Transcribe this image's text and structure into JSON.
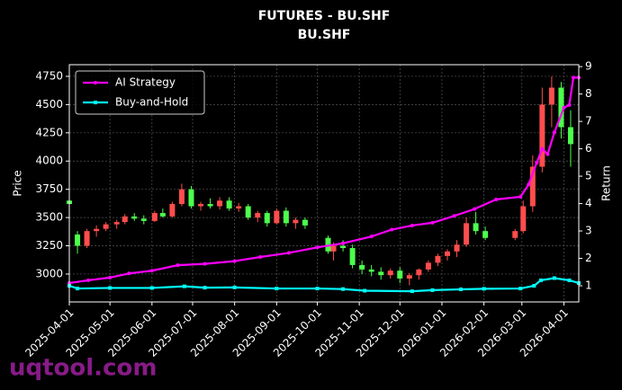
{
  "chart_data": {
    "type": "candlestick",
    "title": "FUTURES - BU.SHF",
    "subtitle": "BU.SHF",
    "ylabel": "Price",
    "y2label": "Return",
    "watermark": "uqtool.com",
    "grid": true,
    "legend": "upper left",
    "up_color": "#ff4d4d",
    "down_color": "#4dff4d",
    "xlim": [
      "2025-04-01",
      "2026-04-12"
    ],
    "xticks": [
      "2025-04-01",
      "2025-05-01",
      "2025-06-01",
      "2025-07-01",
      "2025-08-01",
      "2025-09-01",
      "2025-10-01",
      "2025-11-01",
      "2025-12-01",
      "2026-01-01",
      "2026-02-01",
      "2026-03-01",
      "2026-04-01"
    ],
    "ylim": [
      2753,
      4853
    ],
    "yticks": [
      3000,
      3250,
      3500,
      3750,
      4000,
      4250,
      4500,
      4750
    ],
    "y2lim": [
      0.41,
      9.07
    ],
    "y2ticks": [
      1,
      2,
      3,
      4,
      5,
      6,
      7,
      8,
      9
    ],
    "candles": {
      "x": [
        "2025-04-01",
        "2025-04-07",
        "2025-04-14",
        "2025-04-21",
        "2025-04-28",
        "2025-05-06",
        "2025-05-12",
        "2025-05-19",
        "2025-05-26",
        "2025-06-03",
        "2025-06-09",
        "2025-06-16",
        "2025-06-23",
        "2025-06-30",
        "2025-07-07",
        "2025-07-14",
        "2025-07-21",
        "2025-07-28",
        "2025-08-04",
        "2025-08-11",
        "2025-08-18",
        "2025-08-25",
        "2025-09-01",
        "2025-09-08",
        "2025-09-15",
        "2025-09-22",
        "2025-10-09",
        "2025-10-13",
        "2025-10-20",
        "2025-10-27",
        "2025-11-03",
        "2025-11-10",
        "2025-11-17",
        "2025-11-24",
        "2025-12-01",
        "2025-12-08",
        "2025-12-15",
        "2025-12-22",
        "2025-12-29",
        "2026-01-05",
        "2026-01-12",
        "2026-01-19",
        "2026-01-26",
        "2026-02-02",
        "2026-02-24",
        "2026-03-02",
        "2026-03-09",
        "2026-03-16",
        "2026-03-23",
        "2026-03-30",
        "2026-04-06"
      ],
      "open": [
        3650,
        3350,
        3250,
        3380,
        3400,
        3440,
        3460,
        3510,
        3490,
        3470,
        3540,
        3510,
        3620,
        3750,
        3600,
        3620,
        3600,
        3650,
        3580,
        3600,
        3500,
        3540,
        3450,
        3560,
        3450,
        3480,
        3320,
        3200,
        3250,
        3230,
        3080,
        3040,
        3020,
        2990,
        3030,
        2960,
        2990,
        3040,
        3100,
        3160,
        3200,
        3260,
        3450,
        3380,
        3320,
        3380,
        3600,
        3950,
        4500,
        4650,
        4300
      ],
      "high": [
        3700,
        3380,
        3400,
        3430,
        3460,
        3480,
        3530,
        3540,
        3520,
        3560,
        3580,
        3640,
        3800,
        3780,
        3640,
        3670,
        3680,
        3680,
        3630,
        3620,
        3560,
        3560,
        3580,
        3590,
        3500,
        3500,
        3340,
        3280,
        3300,
        3260,
        3120,
        3080,
        3060,
        3050,
        3060,
        3010,
        3050,
        3120,
        3180,
        3220,
        3300,
        3500,
        3550,
        3420,
        3400,
        3650,
        4050,
        4650,
        4750,
        4700,
        4450
      ],
      "low": [
        3600,
        3180,
        3230,
        3330,
        3380,
        3400,
        3440,
        3470,
        3440,
        3460,
        3500,
        3500,
        3600,
        3580,
        3560,
        3580,
        3570,
        3560,
        3550,
        3480,
        3460,
        3420,
        3440,
        3420,
        3400,
        3400,
        3180,
        3120,
        3200,
        3050,
        3000,
        2980,
        2950,
        2960,
        2920,
        2900,
        2950,
        3020,
        3070,
        3120,
        3150,
        3240,
        3350,
        3300,
        3300,
        3360,
        3550,
        3900,
        4300,
        4200,
        3950
      ],
      "close": [
        3620,
        3250,
        3380,
        3400,
        3440,
        3460,
        3510,
        3490,
        3470,
        3540,
        3510,
        3620,
        3750,
        3600,
        3620,
        3600,
        3650,
        3580,
        3600,
        3500,
        3540,
        3450,
        3560,
        3450,
        3480,
        3430,
        3200,
        3250,
        3230,
        3080,
        3040,
        3020,
        2990,
        3030,
        2960,
        2990,
        3040,
        3100,
        3160,
        3200,
        3260,
        3450,
        3380,
        3320,
        3380,
        3600,
        3950,
        4500,
        4650,
        4300,
        4150
      ]
    },
    "series": [
      {
        "name": "AI Strategy",
        "color": "#ff00ff",
        "axis": "y2",
        "marker": "circle",
        "x": [
          "2025-04-01",
          "2025-04-15",
          "2025-05-01",
          "2025-05-15",
          "2025-06-01",
          "2025-06-20",
          "2025-07-10",
          "2025-08-01",
          "2025-08-20",
          "2025-09-10",
          "2025-10-01",
          "2025-10-20",
          "2025-11-10",
          "2025-11-25",
          "2025-12-10",
          "2025-12-25",
          "2026-01-10",
          "2026-01-25",
          "2026-02-10",
          "2026-02-28",
          "2026-03-06",
          "2026-03-12",
          "2026-03-16",
          "2026-03-20",
          "2026-03-25",
          "2026-04-01",
          "2026-04-05",
          "2026-04-08",
          "2026-04-12"
        ],
        "values": [
          1.1,
          1.2,
          1.3,
          1.45,
          1.55,
          1.75,
          1.8,
          1.9,
          2.05,
          2.2,
          2.4,
          2.55,
          2.8,
          3.05,
          3.2,
          3.3,
          3.55,
          3.8,
          4.15,
          4.25,
          4.7,
          5.5,
          6.0,
          5.8,
          6.6,
          7.5,
          7.6,
          8.6,
          8.6
        ]
      },
      {
        "name": "Buy-and-Hold",
        "color": "#00ffff",
        "axis": "y2",
        "marker": "square",
        "x": [
          "2025-04-01",
          "2025-04-07",
          "2025-05-01",
          "2025-06-01",
          "2025-06-25",
          "2025-07-10",
          "2025-08-01",
          "2025-09-01",
          "2025-10-01",
          "2025-10-20",
          "2025-11-05",
          "2025-12-10",
          "2025-12-25",
          "2026-01-15",
          "2026-02-01",
          "2026-02-28",
          "2026-03-10",
          "2026-03-15",
          "2026-03-25",
          "2026-04-05",
          "2026-04-12"
        ],
        "values": [
          1.0,
          0.9,
          0.92,
          0.92,
          0.98,
          0.93,
          0.94,
          0.9,
          0.9,
          0.88,
          0.82,
          0.8,
          0.84,
          0.87,
          0.89,
          0.9,
          1.0,
          1.2,
          1.28,
          1.2,
          1.1
        ]
      }
    ]
  }
}
